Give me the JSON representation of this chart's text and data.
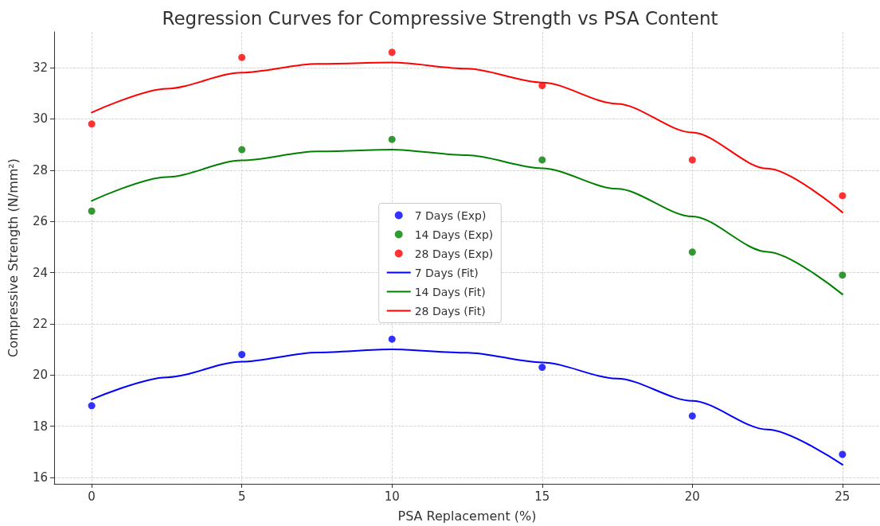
{
  "chart_data": {
    "type": "scatter",
    "title": "Regression Curves for Compressive Strength vs PSA Content",
    "xlabel": "PSA Replacement (%)",
    "ylabel": "Compressive Strength (N/mm²)",
    "xlim": [
      -1.25,
      26.25
    ],
    "xticks": [
      0,
      5,
      10,
      15,
      20,
      25
    ],
    "ylim": [
      15.75,
      33.4
    ],
    "yticks": [
      16,
      18,
      20,
      22,
      24,
      26,
      28,
      30,
      32
    ],
    "grid": true,
    "legend": "center",
    "marker": "circle",
    "series": [
      {
        "name": "7 Days (Exp)",
        "color": "#0000ff",
        "x": [
          0,
          5,
          10,
          15,
          20,
          25
        ],
        "values": [
          18.8,
          20.8,
          21.4,
          20.3,
          18.4,
          16.9
        ]
      },
      {
        "name": "14 Days (Exp)",
        "color": "#008000",
        "x": [
          0,
          5,
          10,
          15,
          20,
          25
        ],
        "values": [
          26.4,
          28.8,
          29.2,
          28.4,
          24.8,
          23.9
        ]
      },
      {
        "name": "28 Days (Exp)",
        "color": "#ff0000",
        "x": [
          0,
          5,
          10,
          15,
          20,
          25
        ],
        "values": [
          29.8,
          32.4,
          32.6,
          31.3,
          28.4,
          27.0
        ]
      },
      {
        "name": "7 Days (Fit)",
        "type": "line",
        "marker": "none",
        "line_style": "solid",
        "color": "#0000ff",
        "x": [
          0,
          2.5,
          5,
          7.5,
          10,
          12.5,
          15,
          17.5,
          20,
          22.5,
          25
        ],
        "values": [
          19.05,
          19.91,
          20.52,
          20.88,
          21.0,
          20.87,
          20.49,
          19.86,
          18.99,
          17.87,
          16.5
        ]
      },
      {
        "name": "14 Days (Fit)",
        "type": "line",
        "marker": "none",
        "line_style": "solid",
        "color": "#008000",
        "x": [
          0,
          2.5,
          5,
          7.5,
          10,
          12.5,
          15,
          17.5,
          20,
          22.5,
          25
        ],
        "values": [
          26.8,
          27.73,
          28.38,
          28.73,
          28.8,
          28.58,
          28.07,
          27.27,
          26.19,
          24.81,
          23.15
        ]
      },
      {
        "name": "28 Days (Fit)",
        "type": "line",
        "marker": "none",
        "line_style": "solid",
        "color": "#ff0000",
        "x": [
          0,
          2.5,
          5,
          7.5,
          10,
          12.5,
          15,
          17.5,
          20,
          22.5,
          25
        ],
        "values": [
          30.25,
          31.18,
          31.81,
          32.15,
          32.2,
          31.96,
          31.42,
          30.59,
          29.47,
          28.06,
          26.35
        ]
      }
    ]
  }
}
